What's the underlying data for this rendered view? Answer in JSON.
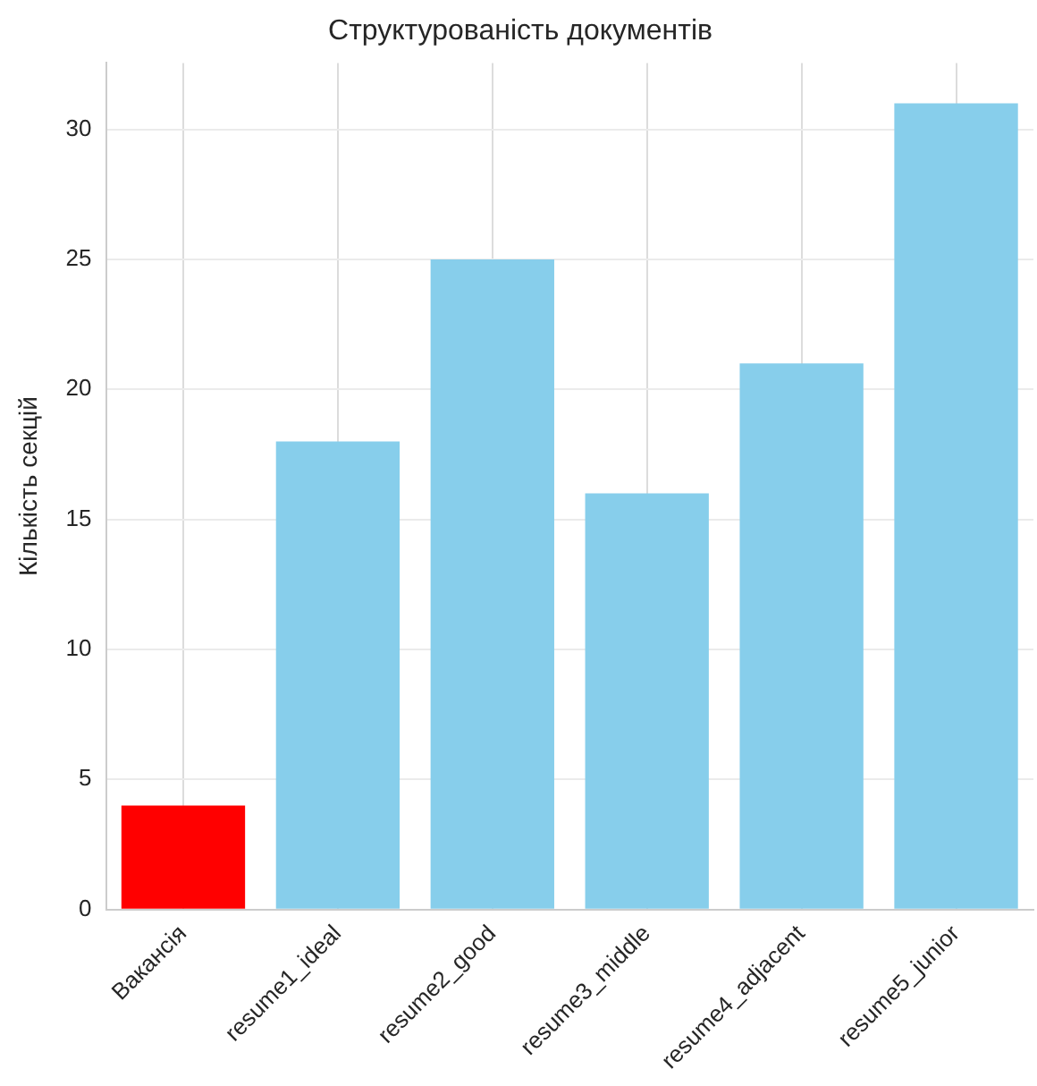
{
  "chart_data": {
    "type": "bar",
    "title": "Структурованість документів",
    "ylabel": "Кількість секцій",
    "categories": [
      "Вакансія",
      "resume1_ideal",
      "resume2_good",
      "resume3_middle",
      "resume4_adjacent",
      "resume5_junior"
    ],
    "values": [
      4,
      18,
      25,
      16,
      21,
      31
    ],
    "colors": [
      "#ff0000",
      "#87ceeb",
      "#87ceeb",
      "#87ceeb",
      "#87ceeb",
      "#87ceeb"
    ],
    "ylim": [
      0,
      32.55
    ],
    "yticks": [
      0,
      5,
      10,
      15,
      20,
      25,
      30
    ],
    "grid": true
  }
}
